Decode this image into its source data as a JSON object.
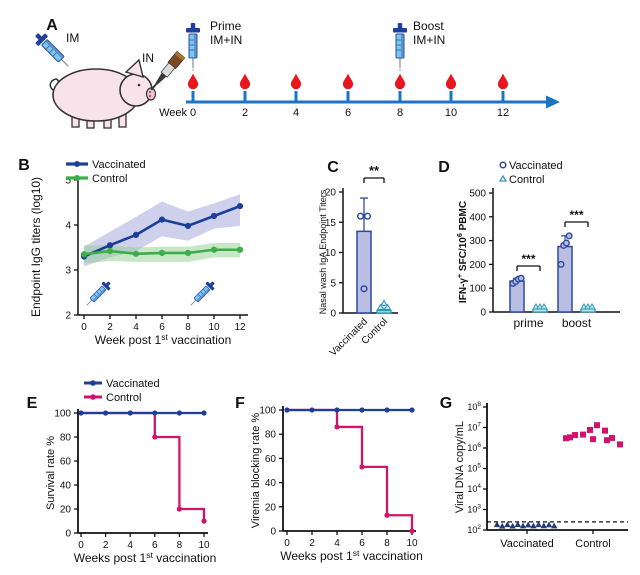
{
  "figure": {
    "panel_labels": {
      "A": "A",
      "B": "B",
      "C": "C",
      "D": "D",
      "E": "E",
      "F": "F",
      "G": "G"
    }
  },
  "colors": {
    "navy": "#1e3f99",
    "navy_dark": "#203a7d",
    "band_navy": "#9fa3d9",
    "green": "#3dad4a",
    "band_green": "#8fd08f",
    "bar_fill": "#b9bee2",
    "bar_stroke": "#2c4aa0",
    "teal": "#2e9ab5",
    "teal_fill": "#bfe6ee",
    "magenta": "#d0146d",
    "timeline_blue": "#1a75c5",
    "drop_red": "#e8161d",
    "pig_pink": "#f9e3ea",
    "axis": "#111111"
  },
  "panel_a": {
    "im_label": "IM",
    "in_label": "IN",
    "week_label": "Week",
    "weeks": [
      "0",
      "2",
      "4",
      "6",
      "8",
      "10",
      "12"
    ],
    "prime_title": "Prime",
    "prime_sub": "IM+IN",
    "boost_title": "Boost",
    "boost_sub": "IM+IN"
  },
  "chart_data": [
    {
      "panel": "B",
      "type": "line",
      "xlabel": [
        {
          "t": "Week post 1"
        },
        {
          "t": "st",
          "sup": true
        },
        {
          "t": " vaccination"
        }
      ],
      "ylabel": [
        {
          "t": "Endpoint IgG titers (log10)"
        }
      ],
      "x": [
        0,
        2,
        4,
        6,
        8,
        10,
        12
      ],
      "xticks": [
        "0",
        "2",
        "4",
        "6",
        "8",
        "10",
        "12"
      ],
      "yticks": [
        "2",
        "3",
        "4",
        "5"
      ],
      "ylim": [
        2,
        5
      ],
      "legend": [
        "Vaccinated",
        "Control"
      ],
      "series": [
        {
          "name": "Vaccinated",
          "values": [
            3.3,
            3.55,
            3.78,
            4.12,
            3.98,
            4.2,
            4.42
          ],
          "band_upper": [
            3.52,
            3.85,
            4.18,
            4.52,
            4.3,
            4.48,
            4.68
          ],
          "band_lower": [
            3.08,
            3.28,
            3.42,
            3.75,
            3.65,
            3.92,
            3.98
          ]
        },
        {
          "name": "Control",
          "values": [
            3.35,
            3.42,
            3.36,
            3.38,
            3.38,
            3.45,
            3.45
          ],
          "band_upper": [
            3.55,
            3.55,
            3.5,
            3.52,
            3.52,
            3.6,
            3.6
          ],
          "band_lower": [
            3.15,
            3.2,
            3.18,
            3.18,
            3.18,
            3.28,
            3.28
          ]
        }
      ],
      "syringe_weeks": [
        1,
        9
      ]
    },
    {
      "panel": "C",
      "type": "bar",
      "ylabel": [
        {
          "t": "Nasal wash IgA Endpoint Titers"
        }
      ],
      "categories": [
        "Vaccinated",
        "Control"
      ],
      "values": [
        13.5,
        0.4
      ],
      "errors": [
        5.5,
        0.5
      ],
      "points": [
        [
          16,
          16,
          4
        ],
        [
          0.6,
          0.9,
          0.4
        ]
      ],
      "ylim": [
        0,
        20
      ],
      "yticks": [
        "0",
        "5",
        "10",
        "15",
        "20"
      ],
      "significance": "**"
    },
    {
      "panel": "D",
      "type": "grouped-bar",
      "ylabel": [
        {
          "t": "IFN-γ"
        },
        {
          "t": "+",
          "sup": true
        },
        {
          "t": " SFC/10"
        },
        {
          "t": "6",
          "sup": true
        },
        {
          "t": " PBMC"
        }
      ],
      "groups": [
        "prime",
        "boost"
      ],
      "legend": [
        "Vaccinated",
        "Control"
      ],
      "ylim": [
        0,
        500
      ],
      "yticks": [
        "0",
        "100",
        "200",
        "300",
        "400",
        "500"
      ],
      "series": [
        {
          "name": "Vaccinated",
          "values": [
            130,
            275
          ],
          "errors": [
            12,
            45
          ],
          "points": [
            [
              120,
              128,
              138,
              142
            ],
            [
              200,
              280,
              290,
              320
            ]
          ]
        },
        {
          "name": "Control",
          "values": [
            4,
            4
          ],
          "errors": [
            2,
            2
          ],
          "points": [
            [
              2,
              3,
              4
            ],
            [
              2,
              3,
              4
            ]
          ]
        }
      ],
      "significance": [
        "***",
        "***"
      ]
    },
    {
      "panel": "E",
      "type": "step",
      "xlabel": [
        {
          "t": "Weeks post 1"
        },
        {
          "t": "st",
          "sup": true
        },
        {
          "t": " vaccination"
        }
      ],
      "ylabel": [
        {
          "t": "Survival rate %"
        }
      ],
      "xticks": [
        "0",
        "2",
        "4",
        "6",
        "8",
        "10"
      ],
      "yticks": [
        "0",
        "20",
        "40",
        "60",
        "80",
        "100"
      ],
      "ylim": [
        0,
        100
      ],
      "xlim": [
        0,
        10
      ],
      "legend": [
        "Vaccinated",
        "Control"
      ],
      "series": [
        {
          "name": "Vaccinated",
          "steps": [
            [
              0,
              100
            ],
            [
              10,
              100
            ]
          ],
          "markers": [
            [
              0,
              100
            ],
            [
              2,
              100
            ],
            [
              4,
              100
            ],
            [
              6,
              100
            ],
            [
              8,
              100
            ],
            [
              10,
              100
            ]
          ]
        },
        {
          "name": "Control",
          "steps": [
            [
              0,
              100
            ],
            [
              6,
              100
            ],
            [
              6,
              80
            ],
            [
              8,
              80
            ],
            [
              8,
              20
            ],
            [
              10,
              20
            ],
            [
              10,
              10
            ]
          ],
          "markers": [
            [
              6,
              80
            ],
            [
              8,
              20
            ],
            [
              10,
              10
            ]
          ]
        }
      ]
    },
    {
      "panel": "F",
      "type": "step",
      "xlabel": [
        {
          "t": "Weeks post 1"
        },
        {
          "t": "st",
          "sup": true
        },
        {
          "t": " vaccination"
        }
      ],
      "ylabel": [
        {
          "t": "Viremia blocking rate %"
        }
      ],
      "xticks": [
        "0",
        "2",
        "4",
        "6",
        "8",
        "10"
      ],
      "yticks": [
        "0",
        "20",
        "40",
        "60",
        "80",
        "100"
      ],
      "ylim": [
        0,
        100
      ],
      "xlim": [
        0,
        10
      ],
      "series": [
        {
          "name": "Vaccinated",
          "steps": [
            [
              0,
              100
            ],
            [
              10,
              100
            ]
          ],
          "markers": [
            [
              0,
              100
            ],
            [
              2,
              100
            ],
            [
              4,
              100
            ],
            [
              6,
              100
            ],
            [
              8,
              100
            ],
            [
              10,
              100
            ]
          ]
        },
        {
          "name": "Control",
          "steps": [
            [
              0,
              100
            ],
            [
              4,
              100
            ],
            [
              4,
              86
            ],
            [
              6,
              86
            ],
            [
              6,
              53
            ],
            [
              8,
              53
            ],
            [
              8,
              13
            ],
            [
              10,
              13
            ],
            [
              10,
              0
            ]
          ],
          "markers": [
            [
              4,
              86
            ],
            [
              6,
              53
            ],
            [
              8,
              13
            ],
            [
              10,
              0
            ]
          ]
        }
      ]
    },
    {
      "panel": "G",
      "type": "scatter-log",
      "ylabel": [
        {
          "t": "Viral DNA copy/mL"
        }
      ],
      "categories": [
        "Vaccinated",
        "Control"
      ],
      "yticks_exp": [
        2,
        3,
        4,
        5,
        6,
        7,
        8
      ],
      "ylim_exp": [
        2,
        8
      ],
      "threshold": 250,
      "series": [
        {
          "name": "Vaccinated",
          "marker": "triangle",
          "values": [
            170,
            168,
            172,
            169,
            174,
            171,
            167,
            173,
            170,
            175,
            168,
            172
          ]
        },
        {
          "name": "Control",
          "marker": "square",
          "values": [
            3000000,
            4300000,
            7600000,
            13000000,
            7000000,
            4500000,
            3100000,
            3300000,
            2700000,
            2400000,
            1500000
          ]
        }
      ]
    }
  ]
}
